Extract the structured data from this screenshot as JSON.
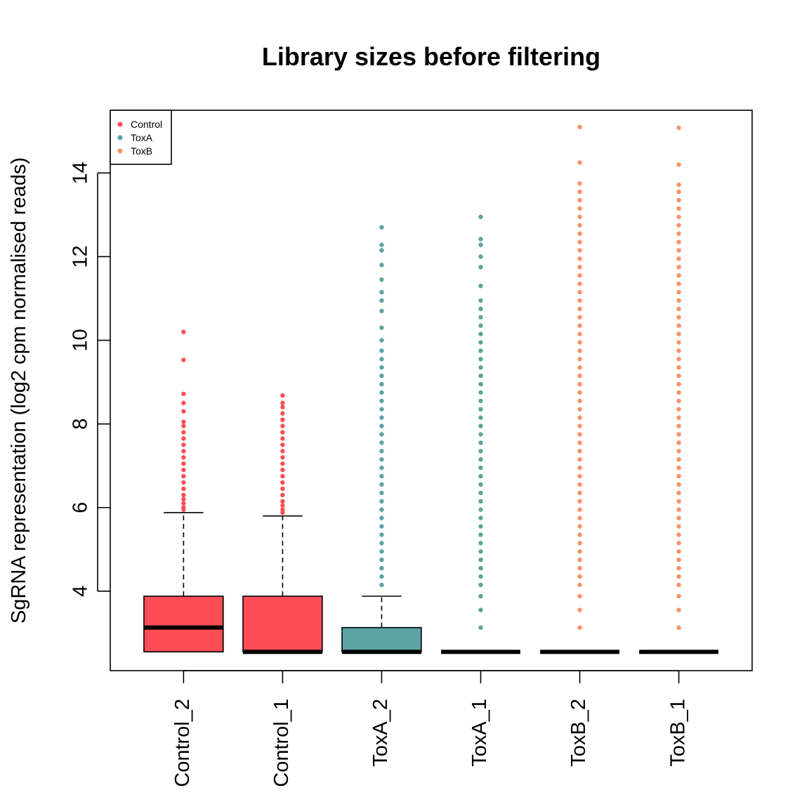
{
  "chart_data": {
    "type": "boxplot",
    "title": "Library sizes before filtering",
    "xlabel": "",
    "ylabel": "SgRNA representation (log2 cpm normalised reads)",
    "ylim": [
      2.1,
      15.5
    ],
    "yticks": [
      4,
      6,
      8,
      10,
      12,
      14
    ],
    "grid": false,
    "legend": {
      "position": "top-left",
      "entries": [
        {
          "label": "Control",
          "color": "#FF4D55"
        },
        {
          "label": "ToxA",
          "color": "#5BA3A4"
        },
        {
          "label": "ToxB",
          "color": "#F99367"
        }
      ]
    },
    "categories": [
      "Control_2",
      "Control_1",
      "ToxA_2",
      "ToxA_1",
      "ToxB_2",
      "ToxB_1"
    ],
    "boxes": [
      {
        "name": "Control_2",
        "group": "Control",
        "color": "#FF4D55",
        "min": 2.55,
        "q1": 2.55,
        "median": 3.13,
        "q3": 3.88,
        "whisker_high": 5.88,
        "outliers": [
          5.95,
          6.0,
          6.1,
          6.2,
          6.3,
          6.45,
          6.6,
          6.75,
          6.9,
          7.05,
          7.2,
          7.35,
          7.5,
          7.65,
          7.8,
          7.95,
          8.05,
          8.3,
          8.5,
          8.72,
          9.53,
          10.2
        ]
      },
      {
        "name": "Control_1",
        "group": "Control",
        "color": "#FF4D55",
        "min": 2.55,
        "q1": 2.55,
        "median": 2.55,
        "q3": 3.88,
        "whisker_high": 5.8,
        "outliers": [
          5.88,
          5.95,
          6.05,
          6.15,
          6.3,
          6.45,
          6.6,
          6.75,
          6.9,
          7.05,
          7.2,
          7.35,
          7.5,
          7.65,
          7.8,
          7.95,
          8.1,
          8.25,
          8.4,
          8.5,
          8.68
        ]
      },
      {
        "name": "ToxA_2",
        "group": "ToxA",
        "color": "#5BA3A4",
        "min": 2.55,
        "q1": 2.55,
        "median": 2.55,
        "q3": 3.13,
        "whisker_high": 3.88,
        "outliers": [
          4.15,
          4.35,
          4.55,
          4.75,
          4.95,
          5.15,
          5.35,
          5.55,
          5.75,
          5.95,
          6.15,
          6.35,
          6.55,
          6.75,
          6.95,
          7.15,
          7.35,
          7.55,
          7.75,
          7.95,
          8.15,
          8.35,
          8.55,
          8.75,
          8.95,
          9.15,
          9.35,
          9.55,
          9.75,
          10.0,
          10.3,
          10.7,
          10.95,
          11.15,
          11.45,
          11.8,
          12.15,
          12.28,
          12.7
        ]
      },
      {
        "name": "ToxA_1",
        "group": "ToxA",
        "color": "#5BA3A4",
        "min": 2.55,
        "q1": 2.55,
        "median": 2.55,
        "q3": 2.55,
        "whisker_high": 2.55,
        "outliers": [
          3.13,
          3.55,
          3.88,
          4.15,
          4.35,
          4.55,
          4.75,
          4.95,
          5.15,
          5.35,
          5.55,
          5.75,
          5.95,
          6.15,
          6.35,
          6.55,
          6.75,
          6.95,
          7.15,
          7.35,
          7.55,
          7.75,
          7.95,
          8.15,
          8.35,
          8.55,
          8.75,
          8.95,
          9.15,
          9.35,
          9.55,
          9.75,
          9.95,
          10.15,
          10.35,
          10.55,
          10.75,
          10.95,
          11.3,
          11.75,
          12.0,
          12.28,
          12.42,
          12.95
        ]
      },
      {
        "name": "ToxB_2",
        "group": "ToxB",
        "color": "#F99367",
        "min": 2.55,
        "q1": 2.55,
        "median": 2.55,
        "q3": 2.55,
        "whisker_high": 2.55,
        "outliers": [
          3.13,
          3.55,
          3.88,
          4.15,
          4.35,
          4.55,
          4.75,
          4.95,
          5.15,
          5.35,
          5.55,
          5.75,
          5.95,
          6.15,
          6.35,
          6.55,
          6.75,
          6.95,
          7.15,
          7.35,
          7.55,
          7.75,
          7.95,
          8.15,
          8.35,
          8.55,
          8.75,
          8.95,
          9.15,
          9.35,
          9.55,
          9.75,
          9.95,
          10.15,
          10.35,
          10.55,
          10.75,
          10.95,
          11.15,
          11.35,
          11.55,
          11.75,
          11.95,
          12.15,
          12.35,
          12.55,
          12.75,
          12.95,
          13.15,
          13.35,
          13.55,
          13.75,
          14.25,
          15.1
        ]
      },
      {
        "name": "ToxB_1",
        "group": "ToxB",
        "color": "#F99367",
        "min": 2.55,
        "q1": 2.55,
        "median": 2.55,
        "q3": 2.55,
        "whisker_high": 2.55,
        "outliers": [
          3.13,
          3.55,
          3.88,
          4.15,
          4.35,
          4.55,
          4.75,
          4.95,
          5.15,
          5.35,
          5.55,
          5.75,
          5.95,
          6.15,
          6.35,
          6.55,
          6.75,
          6.95,
          7.15,
          7.35,
          7.55,
          7.75,
          7.95,
          8.15,
          8.35,
          8.55,
          8.75,
          8.95,
          9.15,
          9.35,
          9.55,
          9.75,
          9.95,
          10.15,
          10.35,
          10.55,
          10.75,
          10.95,
          11.15,
          11.35,
          11.55,
          11.75,
          11.95,
          12.15,
          12.35,
          12.55,
          12.75,
          12.95,
          13.15,
          13.35,
          13.55,
          13.72,
          14.2,
          15.08
        ]
      }
    ]
  }
}
